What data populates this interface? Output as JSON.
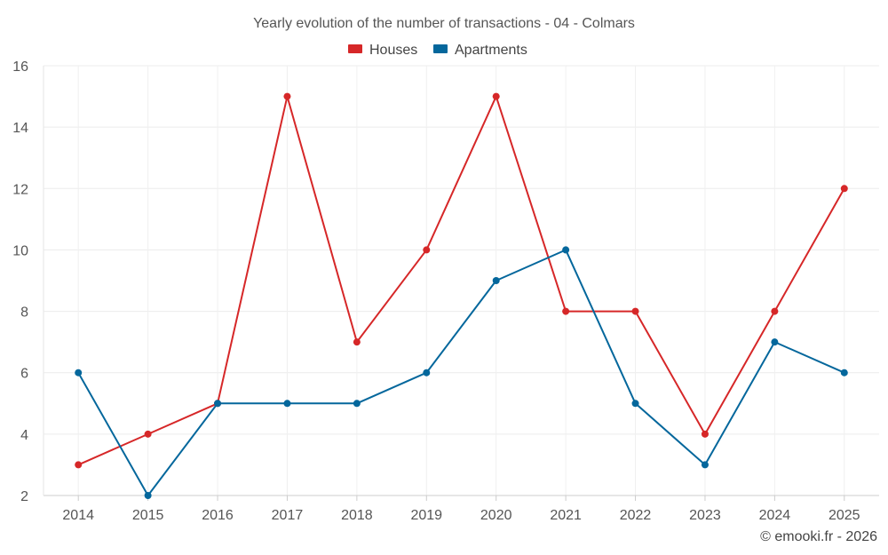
{
  "chart_data": {
    "type": "line",
    "title": "Yearly evolution of the number of transactions - 04 - Colmars",
    "categories": [
      "2014",
      "2015",
      "2016",
      "2017",
      "2018",
      "2019",
      "2020",
      "2021",
      "2022",
      "2023",
      "2024",
      "2025"
    ],
    "series": [
      {
        "name": "Houses",
        "color": "#d62728",
        "values": [
          3,
          4,
          5,
          15,
          7,
          10,
          15,
          8,
          8,
          4,
          8,
          12
        ]
      },
      {
        "name": "Apartments",
        "color": "#04679c",
        "values": [
          6,
          2,
          5,
          5,
          5,
          6,
          9,
          10,
          5,
          3,
          7,
          6
        ]
      }
    ],
    "xlabel": "",
    "ylabel": "",
    "ylim": [
      2,
      16
    ],
    "yticks": [
      2,
      4,
      6,
      8,
      10,
      12,
      14,
      16
    ],
    "grid": true,
    "legend_position": "top-center"
  },
  "credit": "© emooki.fr - 2026"
}
